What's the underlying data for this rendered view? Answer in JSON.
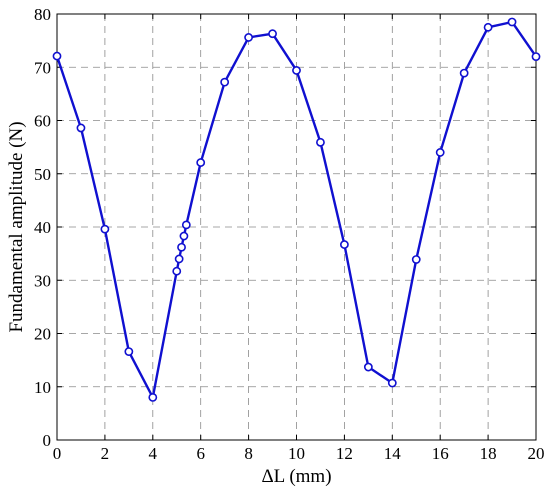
{
  "chart_data": {
    "type": "line",
    "title": "",
    "xlabel": "ΔL (mm)",
    "ylabel": "Fundamental amplitude (N)",
    "xlim": [
      0,
      20
    ],
    "ylim": [
      0,
      80
    ],
    "xticks": [
      0,
      2,
      4,
      6,
      8,
      10,
      12,
      14,
      16,
      18,
      20
    ],
    "yticks": [
      0,
      10,
      20,
      30,
      40,
      50,
      60,
      70,
      80
    ],
    "grid": true,
    "legend": "none",
    "series": [
      {
        "color": "#1010d0",
        "marker": "circle",
        "x": [
          0,
          1,
          2,
          3,
          4,
          5,
          5.1,
          5.2,
          5.3,
          5.4,
          6,
          7,
          8,
          9,
          10,
          11,
          12,
          13,
          14,
          15,
          16,
          17,
          18,
          19,
          20
        ],
        "y": [
          72.1,
          58.6,
          39.6,
          16.6,
          8.0,
          31.7,
          34.0,
          36.2,
          38.3,
          40.4,
          52.1,
          67.2,
          75.6,
          76.3,
          69.4,
          55.9,
          36.7,
          13.7,
          10.7,
          33.9,
          54.0,
          68.9,
          77.5,
          78.5,
          72.0
        ]
      }
    ]
  }
}
